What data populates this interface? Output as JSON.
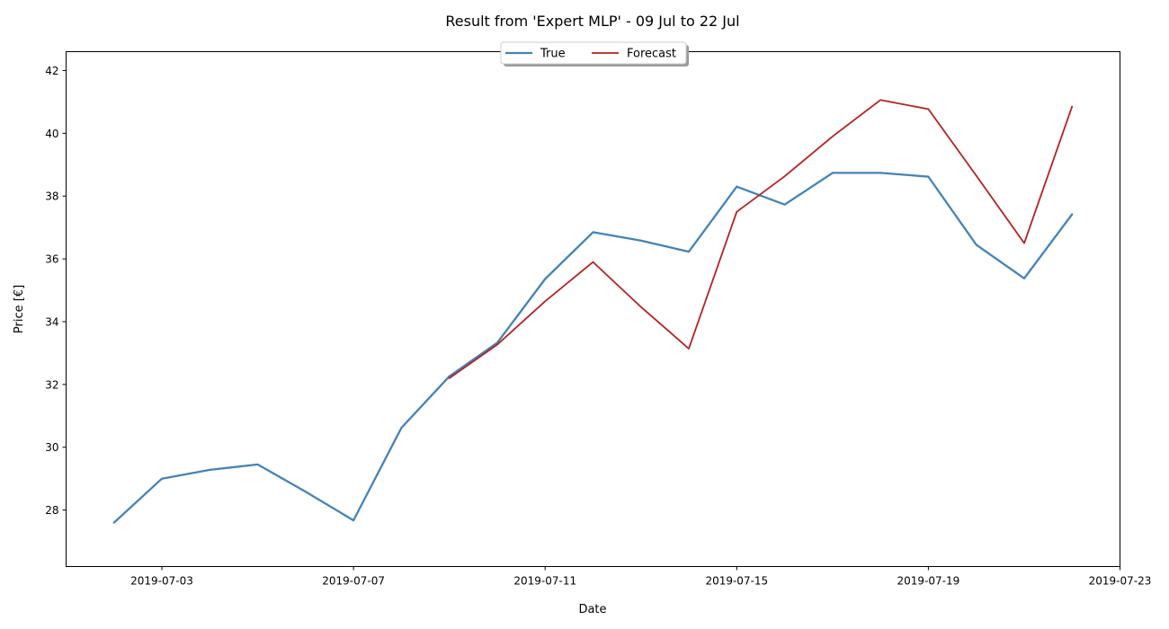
{
  "chart_data": {
    "type": "line",
    "title": "Result from 'Expert MLP' - 09 Jul to 22 Jul",
    "xlabel": "Date",
    "ylabel": "Price [€]",
    "xlim": [
      "2019-07-01",
      "2019-07-23"
    ],
    "ylim": [
      26.2,
      42.6
    ],
    "x_ticks": [
      "2019-07-03",
      "2019-07-07",
      "2019-07-11",
      "2019-07-15",
      "2019-07-19",
      "2019-07-23"
    ],
    "y_ticks": [
      28,
      30,
      32,
      34,
      36,
      38,
      40,
      42
    ],
    "grid": false,
    "legend_position": "top-center",
    "series": [
      {
        "name": "True",
        "color": "#4682b4",
        "x": [
          "2019-07-02",
          "2019-07-03",
          "2019-07-04",
          "2019-07-05",
          "2019-07-06",
          "2019-07-07",
          "2019-07-08",
          "2019-07-09",
          "2019-07-10",
          "2019-07-11",
          "2019-07-12",
          "2019-07-13",
          "2019-07-14",
          "2019-07-15",
          "2019-07-16",
          "2019-07-17",
          "2019-07-18",
          "2019-07-19",
          "2019-07-20",
          "2019-07-21",
          "2019-07-22"
        ],
        "values": [
          27.6,
          29.0,
          29.28,
          29.45,
          28.58,
          27.67,
          30.62,
          32.26,
          33.33,
          35.36,
          36.85,
          36.58,
          36.23,
          38.3,
          37.73,
          38.74,
          38.74,
          38.62,
          36.45,
          35.38,
          37.42
        ]
      },
      {
        "name": "Forecast",
        "color": "#b22222",
        "x": [
          "2019-07-09",
          "2019-07-10",
          "2019-07-11",
          "2019-07-12",
          "2019-07-13",
          "2019-07-14",
          "2019-07-15",
          "2019-07-16",
          "2019-07-17",
          "2019-07-18",
          "2019-07-19",
          "2019-07-20",
          "2019-07-21",
          "2019-07-22"
        ],
        "values": [
          32.2,
          33.27,
          34.65,
          35.9,
          34.47,
          33.14,
          37.5,
          38.63,
          39.9,
          41.06,
          40.77,
          38.65,
          36.5,
          40.85
        ]
      }
    ]
  }
}
